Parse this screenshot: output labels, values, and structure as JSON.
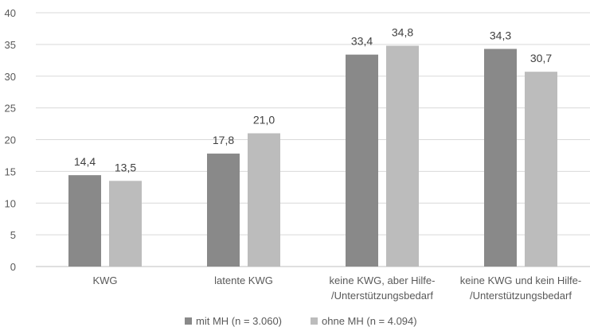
{
  "chart_data": {
    "type": "bar",
    "categories": [
      [
        "KWG"
      ],
      [
        "latente KWG"
      ],
      [
        "keine KWG, aber Hilfe-",
        "/Unterstützungsbedarf"
      ],
      [
        "keine KWG und kein Hilfe-",
        "/Unterstützungsbedarf"
      ]
    ],
    "series": [
      {
        "name": "mit MH (n = 3.060)",
        "color": "#898989",
        "values": [
          14.4,
          17.8,
          33.4,
          34.3
        ],
        "labels": [
          "14,4",
          "17,8",
          "33,4",
          "34,3"
        ]
      },
      {
        "name": "ohne MH (n = 4.094)",
        "color": "#bcbcbc",
        "values": [
          13.5,
          21.0,
          34.8,
          30.7
        ],
        "labels": [
          "13,5",
          "21,0",
          "34,8",
          "30,7"
        ]
      }
    ],
    "ylim": [
      0,
      40
    ],
    "yticks": [
      0,
      5,
      10,
      15,
      20,
      25,
      30,
      35,
      40
    ],
    "grid": true,
    "legend": "bottom"
  }
}
